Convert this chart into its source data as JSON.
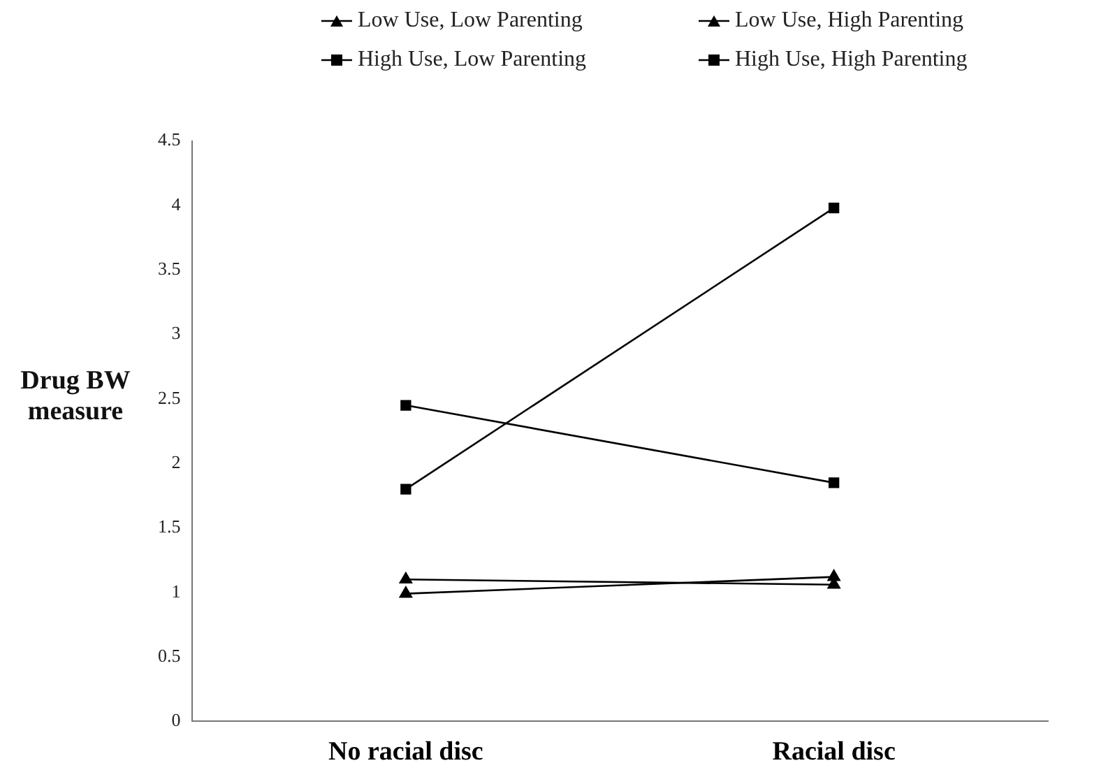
{
  "chart_data": {
    "type": "line",
    "categories": [
      "No racial disc",
      "Racial disc"
    ],
    "ylabel": "Drug BW measure",
    "ylim": [
      0,
      4.5
    ],
    "yticks": [
      0,
      0.5,
      1,
      1.5,
      2,
      2.5,
      3,
      3.5,
      4,
      4.5
    ],
    "grid": false,
    "legend": "top",
    "line_style": "solid",
    "series": [
      {
        "name": "Low Use, Low Parenting",
        "color": "#000000",
        "marker": "triangle",
        "values": [
          0.99,
          1.12
        ]
      },
      {
        "name": "Low Use, High Parenting",
        "color": "#000000",
        "marker": "triangle",
        "values": [
          1.1,
          1.06
        ]
      },
      {
        "name": "High Use, Low Parenting",
        "color": "#000000",
        "marker": "square",
        "values": [
          1.8,
          3.98
        ]
      },
      {
        "name": "High Use, High Parenting",
        "color": "#000000",
        "marker": "square",
        "values": [
          2.45,
          1.85
        ]
      }
    ]
  }
}
